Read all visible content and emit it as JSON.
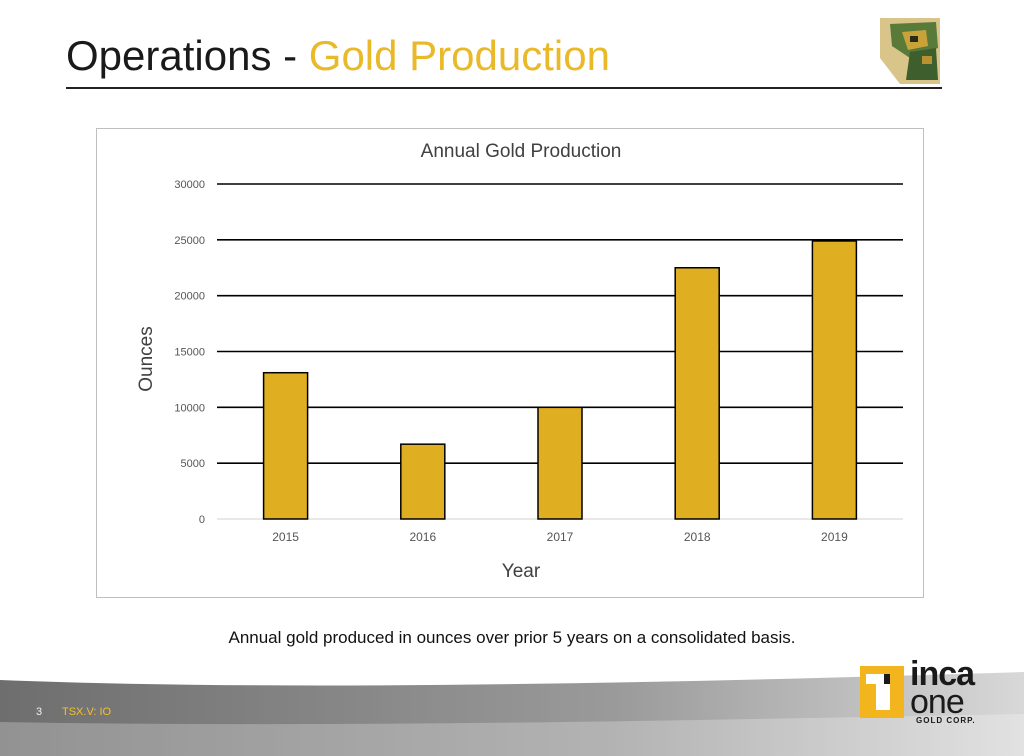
{
  "slide": {
    "title_main": "Operations -",
    "title_accent": "Gold Production",
    "caption": "Annual gold produced in ounces over prior 5 years on a consolidated basis.",
    "slide_number": "3",
    "ticker": "TSX.V: IO"
  },
  "logo": {
    "word1": "inca",
    "word2": "one",
    "sub": "GOLD CORP."
  },
  "colors": {
    "accent": "#e9b929",
    "bar_fill": "#e0ae21",
    "bar_stroke": "#000000"
  },
  "chart_data": {
    "type": "bar",
    "title": "Annual Gold Production",
    "xlabel": "Year",
    "ylabel": "Ounces",
    "categories": [
      "2015",
      "2016",
      "2017",
      "2018",
      "2019"
    ],
    "values": [
      13100,
      6700,
      10000,
      22500,
      24900
    ],
    "ylim": [
      0,
      30000
    ],
    "yticks": [
      "0",
      "5000",
      "10000",
      "15000",
      "20000",
      "25000",
      "30000"
    ],
    "grid": true,
    "legend": "none"
  }
}
